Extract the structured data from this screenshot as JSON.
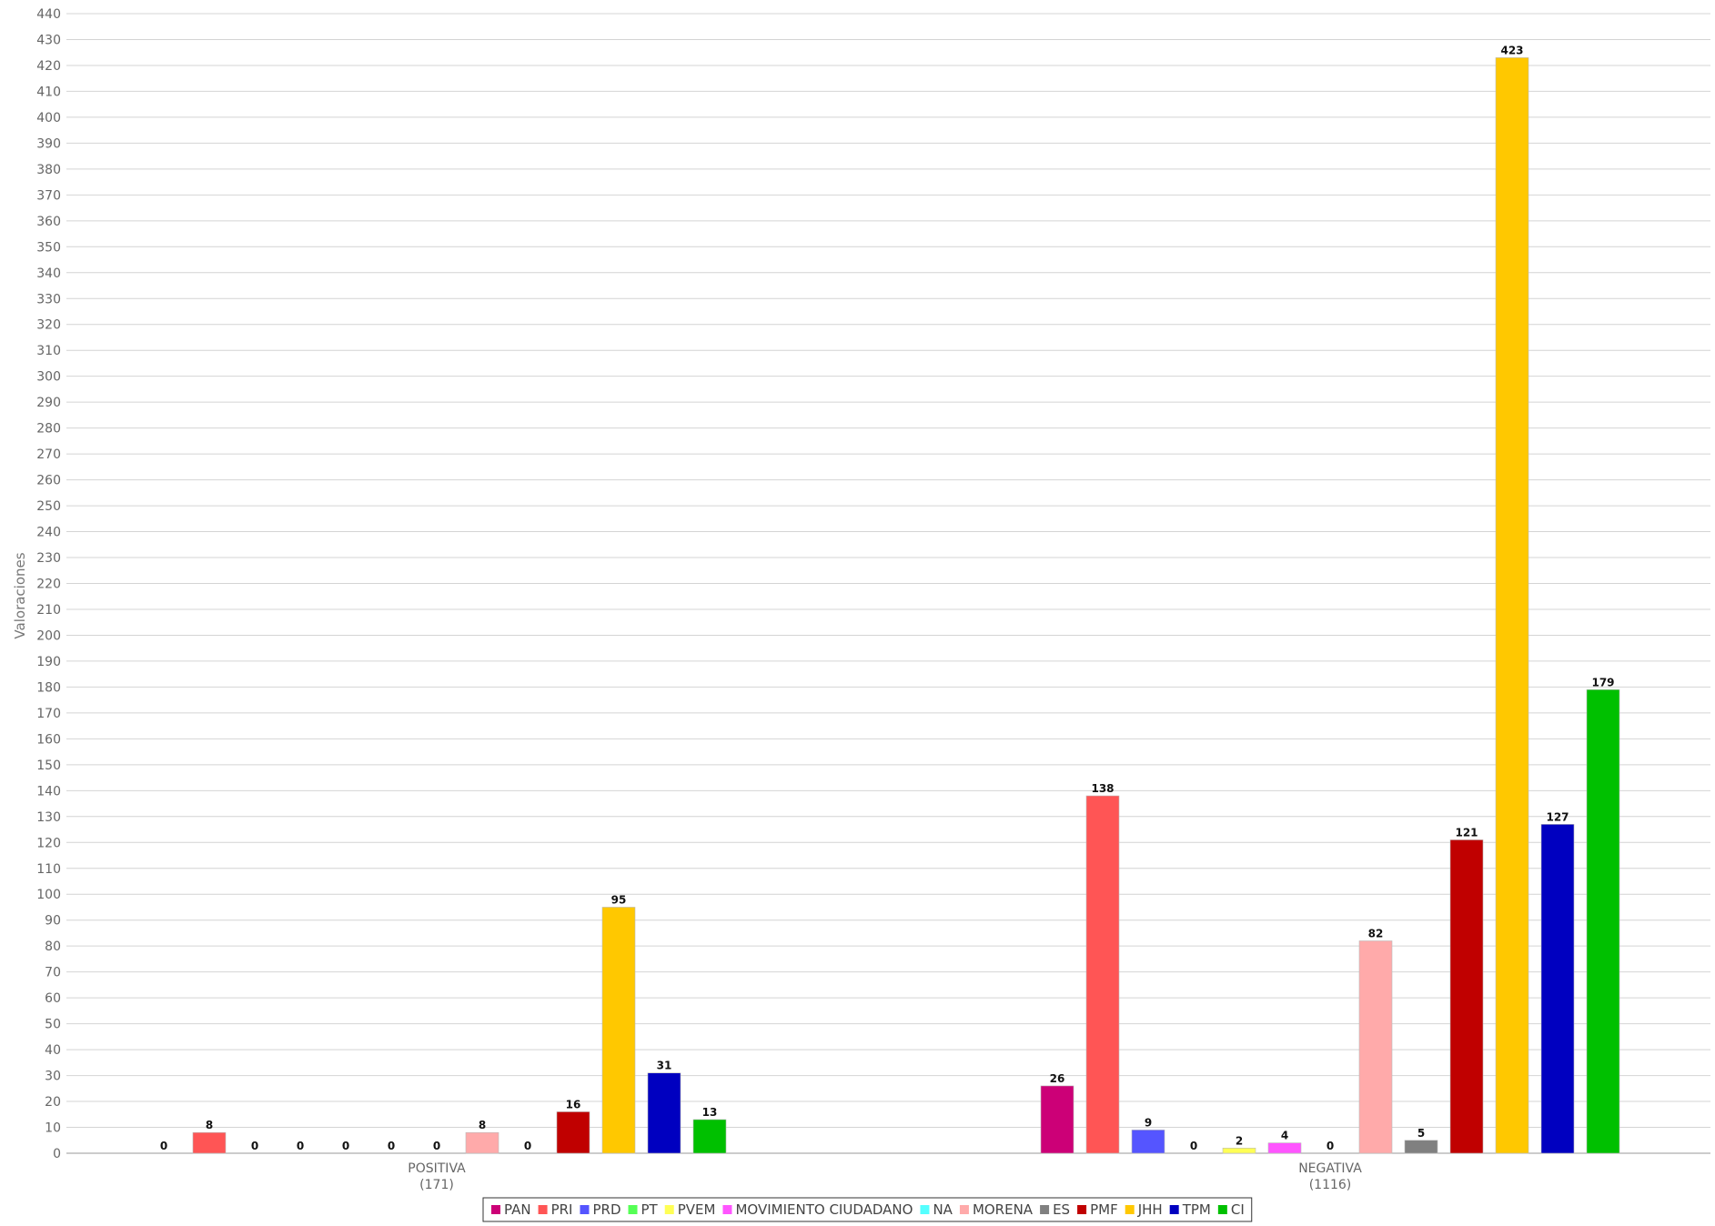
{
  "chart_data": {
    "type": "bar",
    "ylabel": "Valoraciones",
    "ylim": [
      0,
      440
    ],
    "ytick_step": 10,
    "grid": true,
    "legend_position": "bottom",
    "categories": [
      {
        "name": "POSITIVA",
        "total": "(171)"
      },
      {
        "name": "NEGATIVA",
        "total": "(1116)"
      }
    ],
    "series": [
      {
        "name": "PAN",
        "color": "#cc0077",
        "values": [
          0,
          26
        ]
      },
      {
        "name": "PRI",
        "color": "#ff5555",
        "values": [
          8,
          138
        ]
      },
      {
        "name": "PRD",
        "color": "#5555ff",
        "values": [
          0,
          9
        ]
      },
      {
        "name": "PT",
        "color": "#55ff55",
        "values": [
          0,
          0
        ]
      },
      {
        "name": "PVEM",
        "color": "#ffff55",
        "values": [
          0,
          2
        ]
      },
      {
        "name": "MOVIMIENTO CIUDADANO",
        "color": "#ff55ff",
        "values": [
          0,
          4
        ]
      },
      {
        "name": "NA",
        "color": "#55ffff",
        "values": [
          0,
          0
        ]
      },
      {
        "name": "MORENA",
        "color": "#ffaaaa",
        "values": [
          8,
          82
        ]
      },
      {
        "name": "ES",
        "color": "#808080",
        "values": [
          0,
          5
        ]
      },
      {
        "name": "PMF",
        "color": "#c00000",
        "values": [
          16,
          121
        ]
      },
      {
        "name": "JHH",
        "color": "#ffc800",
        "values": [
          95,
          423
        ]
      },
      {
        "name": "TPM",
        "color": "#0000c0",
        "values": [
          31,
          127
        ]
      },
      {
        "name": "CI",
        "color": "#00c000",
        "values": [
          13,
          179
        ]
      }
    ]
  }
}
